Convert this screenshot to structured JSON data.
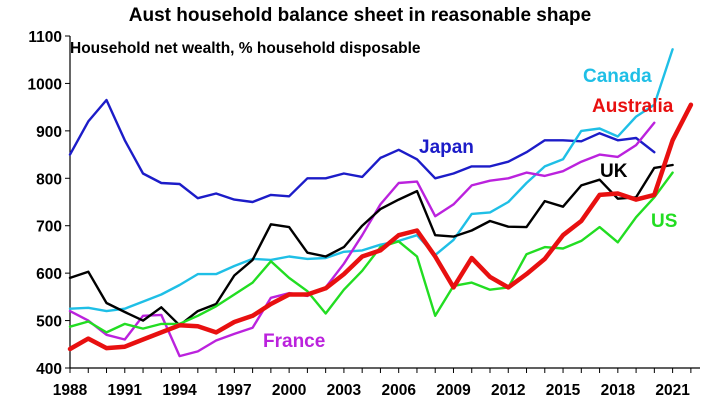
{
  "chart_data": {
    "type": "line",
    "title": "Aust household balance sheet in reasonable shape",
    "subtitle": "Household net wealth, % household disposable",
    "ylim": [
      400,
      1100
    ],
    "yticks": [
      400,
      500,
      600,
      700,
      800,
      900,
      1000,
      1100
    ],
    "xlim": [
      1988,
      2022.5
    ],
    "xticks": [
      1988,
      1991,
      1994,
      1997,
      2000,
      2003,
      2006,
      2009,
      2012,
      2015,
      2018,
      2021
    ],
    "grid": false,
    "series": [
      {
        "name": "Japan",
        "color": "#1c1cc8",
        "x": [
          1988,
          1989,
          1990,
          1991,
          1992,
          1993,
          1994,
          1995,
          1996,
          1997,
          1998,
          1999,
          2000,
          2001,
          2002,
          2003,
          2004,
          2005,
          2006,
          2007,
          2008,
          2009,
          2010,
          2011,
          2012,
          2013,
          2014,
          2015,
          2016,
          2017,
          2018,
          2019,
          2020
        ],
        "values": [
          850,
          920,
          965,
          880,
          810,
          790,
          788,
          758,
          768,
          755,
          750,
          765,
          762,
          800,
          800,
          810,
          803,
          843,
          860,
          840,
          800,
          810,
          825,
          825,
          835,
          855,
          880,
          880,
          878,
          895,
          880,
          885,
          855
        ]
      },
      {
        "name": "Canada",
        "color": "#1fbfe6",
        "x": [
          1988,
          1989,
          1990,
          1991,
          1992,
          1993,
          1994,
          1995,
          1996,
          1997,
          1998,
          1999,
          2000,
          2001,
          2002,
          2003,
          2004,
          2005,
          2006,
          2007,
          2008,
          2009,
          2010,
          2011,
          2012,
          2013,
          2014,
          2015,
          2016,
          2017,
          2018,
          2019,
          2020,
          2021
        ],
        "values": [
          525,
          527,
          520,
          525,
          540,
          555,
          575,
          598,
          598,
          615,
          630,
          628,
          635,
          630,
          632,
          645,
          648,
          660,
          668,
          680,
          638,
          670,
          725,
          728,
          750,
          790,
          825,
          840,
          900,
          905,
          888,
          930,
          955,
          1072
        ]
      },
      {
        "name": "Australia",
        "color": "#e81010",
        "x": [
          1988,
          1989,
          1990,
          1991,
          1992,
          1993,
          1994,
          1995,
          1996,
          1997,
          1998,
          1999,
          2000,
          2001,
          2002,
          2003,
          2004,
          2005,
          2006,
          2007,
          2008,
          2009,
          2010,
          2011,
          2012,
          2013,
          2014,
          2015,
          2016,
          2017,
          2018,
          2019,
          2020,
          2021,
          2022
        ],
        "values": [
          440,
          462,
          442,
          445,
          460,
          475,
          490,
          488,
          475,
          497,
          510,
          535,
          555,
          555,
          568,
          598,
          635,
          648,
          680,
          690,
          635,
          570,
          632,
          592,
          570,
          598,
          630,
          680,
          710,
          765,
          768,
          755,
          765,
          880,
          955
        ]
      },
      {
        "name": "UK",
        "color": "#000000",
        "x": [
          1988,
          1989,
          1990,
          1991,
          1992,
          1993,
          1994,
          1995,
          1996,
          1997,
          1998,
          1999,
          2000,
          2001,
          2002,
          2003,
          2004,
          2005,
          2006,
          2007,
          2008,
          2009,
          2010,
          2011,
          2012,
          2013,
          2014,
          2015,
          2016,
          2017,
          2018,
          2019,
          2020,
          2021
        ],
        "values": [
          590,
          603,
          537,
          518,
          500,
          528,
          490,
          520,
          535,
          595,
          628,
          703,
          697,
          643,
          635,
          655,
          700,
          735,
          755,
          773,
          680,
          677,
          690,
          710,
          698,
          697,
          752,
          740,
          785,
          797,
          757,
          760,
          822,
          828
        ]
      },
      {
        "name": "US",
        "color": "#22dd22",
        "x": [
          1988,
          1989,
          1990,
          1991,
          1992,
          1993,
          1994,
          1995,
          1996,
          1997,
          1998,
          1999,
          2000,
          2001,
          2002,
          2003,
          2004,
          2005,
          2006,
          2007,
          2008,
          2009,
          2010,
          2011,
          2012,
          2013,
          2014,
          2015,
          2016,
          2017,
          2018,
          2019,
          2020,
          2021
        ],
        "values": [
          487,
          498,
          475,
          493,
          483,
          493,
          493,
          510,
          530,
          555,
          580,
          625,
          590,
          562,
          515,
          565,
          605,
          655,
          667,
          635,
          510,
          573,
          580,
          565,
          570,
          640,
          655,
          652,
          668,
          697,
          665,
          718,
          760,
          812
        ]
      },
      {
        "name": "France",
        "color": "#bb22dd",
        "x": [
          1988,
          1989,
          1990,
          1991,
          1992,
          1993,
          1994,
          1995,
          1996,
          1997,
          1998,
          1999,
          2000,
          2001,
          2002,
          2003,
          2004,
          2005,
          2006,
          2007,
          2008,
          2009,
          2010,
          2011,
          2012,
          2013,
          2014,
          2015,
          2016,
          2017,
          2018,
          2019,
          2020
        ],
        "values": [
          520,
          500,
          470,
          460,
          510,
          512,
          425,
          435,
          458,
          472,
          485,
          548,
          558,
          552,
          570,
          620,
          680,
          745,
          790,
          793,
          720,
          745,
          785,
          795,
          800,
          812,
          805,
          815,
          835,
          850,
          845,
          870,
          917
        ]
      }
    ],
    "series_labels": [
      "Canada",
      "Australia",
      "Japan",
      "UK",
      "US",
      "France"
    ]
  }
}
